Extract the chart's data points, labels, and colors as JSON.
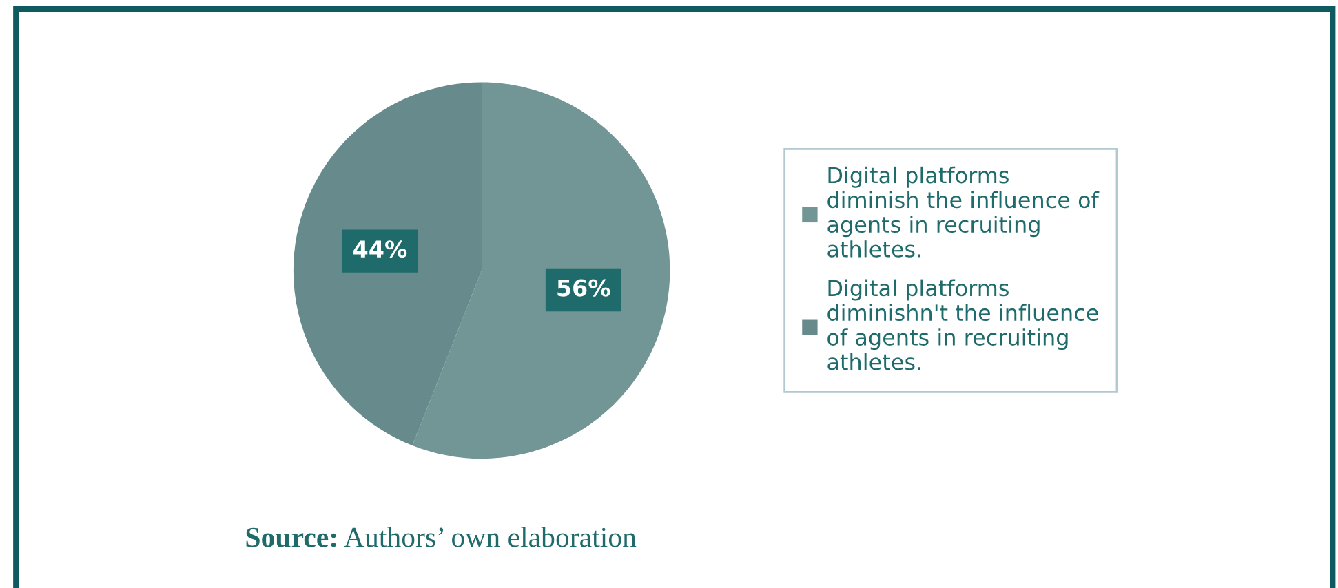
{
  "chart_data": {
    "type": "pie",
    "categories": [
      "Digital platforms diminish the influence of agents in recruiting athletes.",
      "Digital platforms diminishn't the influence of agents in recruiting athletes."
    ],
    "values": [
      56,
      44
    ],
    "colors": [
      "#729596",
      "#678b8d"
    ],
    "value_labels": [
      "56%",
      "44%"
    ],
    "legend": "right",
    "annotations": [
      "Source: Authors’ own elaboration"
    ]
  }
}
